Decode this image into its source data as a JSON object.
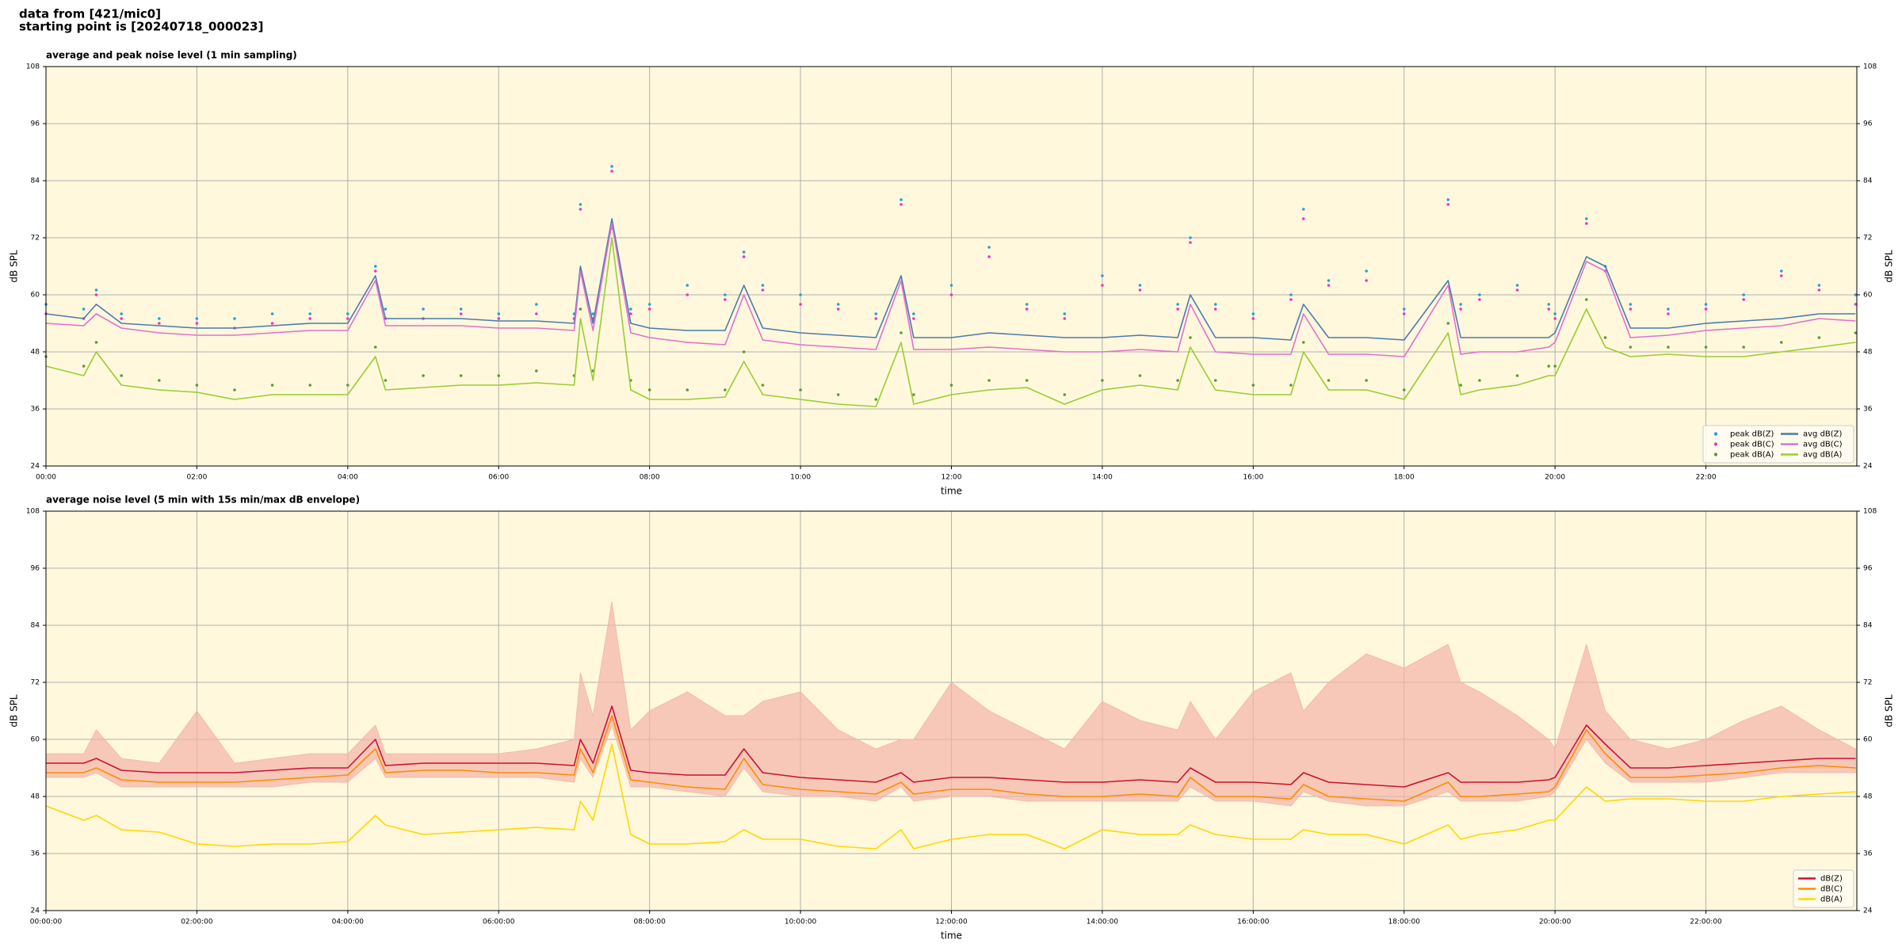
{
  "header": {
    "line1": "data from [421/mic0]",
    "line2": "starting point is [20240718_000023]"
  },
  "chart_data": [
    {
      "type": "line",
      "title": "average and peak noise level (1 min sampling)",
      "xlabel": "time",
      "ylabel": "dB SPL",
      "y2label": "dB SPL",
      "x": [
        "00:00",
        "00:30",
        "00:40",
        "01:00",
        "01:30",
        "02:00",
        "02:30",
        "03:00",
        "03:30",
        "04:00",
        "04:22",
        "04:30",
        "05:00",
        "05:30",
        "06:00",
        "06:30",
        "07:00",
        "07:05",
        "07:15",
        "07:30",
        "07:45",
        "08:00",
        "08:30",
        "09:00",
        "09:15",
        "09:30",
        "10:00",
        "10:30",
        "11:00",
        "11:20",
        "11:30",
        "12:00",
        "12:30",
        "13:00",
        "13:30",
        "14:00",
        "14:30",
        "15:00",
        "15:10",
        "15:30",
        "16:00",
        "16:30",
        "16:40",
        "17:00",
        "17:30",
        "18:00",
        "18:35",
        "18:45",
        "19:00",
        "19:30",
        "19:55",
        "20:00",
        "20:25",
        "20:40",
        "21:00",
        "21:30",
        "22:00",
        "22:30",
        "23:00",
        "23:30",
        "23:59"
      ],
      "xlim": [
        "00:00",
        "24:00"
      ],
      "xticks": [
        "00:00",
        "02:00",
        "04:00",
        "06:00",
        "08:00",
        "10:00",
        "12:00",
        "14:00",
        "16:00",
        "18:00",
        "20:00",
        "22:00"
      ],
      "ylim": [
        24,
        108
      ],
      "yticks": [
        24,
        36,
        48,
        60,
        72,
        84,
        96,
        108
      ],
      "grid": true,
      "background": "#fff8dc",
      "legend": "lower right",
      "legend_columns": 2,
      "series": [
        {
          "name": "peak dB(Z)",
          "marker": "dot",
          "color": "#2a9fd6",
          "values": [
            58,
            57,
            61,
            56,
            55,
            55,
            55,
            56,
            56,
            56,
            66,
            57,
            57,
            57,
            56,
            58,
            56,
            79,
            56,
            87,
            57,
            58,
            62,
            60,
            69,
            62,
            60,
            58,
            56,
            80,
            56,
            62,
            70,
            58,
            56,
            64,
            62,
            58,
            72,
            58,
            56,
            60,
            78,
            63,
            65,
            57,
            80,
            58,
            60,
            62,
            58,
            56,
            76,
            66,
            58,
            57,
            58,
            60,
            65,
            62,
            60
          ]
        },
        {
          "name": "peak dB(C)",
          "marker": "dot",
          "color": "#f033c8",
          "values": [
            56,
            55,
            60,
            55,
            54,
            54,
            53,
            54,
            55,
            55,
            65,
            55,
            55,
            56,
            55,
            56,
            55,
            78,
            55,
            86,
            56,
            57,
            60,
            59,
            68,
            61,
            58,
            57,
            55,
            79,
            55,
            60,
            68,
            57,
            55,
            62,
            61,
            57,
            71,
            57,
            55,
            59,
            76,
            62,
            63,
            56,
            79,
            57,
            59,
            61,
            57,
            55,
            75,
            65,
            57,
            56,
            57,
            59,
            64,
            61,
            58
          ]
        },
        {
          "name": "peak dB(A)",
          "marker": "dot",
          "color": "#5a9a3a",
          "values": [
            47,
            45,
            50,
            43,
            42,
            41,
            40,
            41,
            41,
            41,
            49,
            42,
            43,
            43,
            43,
            44,
            43,
            57,
            44,
            74,
            42,
            40,
            40,
            40,
            48,
            41,
            40,
            39,
            38,
            52,
            39,
            41,
            42,
            42,
            39,
            42,
            43,
            42,
            51,
            42,
            41,
            41,
            50,
            42,
            42,
            40,
            54,
            41,
            42,
            43,
            45,
            45,
            59,
            51,
            49,
            49,
            49,
            49,
            50,
            51,
            52
          ]
        },
        {
          "name": "avg dB(Z)",
          "marker": "line",
          "color": "#4a7ab0",
          "values": [
            56,
            55,
            58,
            54,
            53.5,
            53,
            53,
            53.5,
            54,
            54,
            64,
            55,
            55,
            55,
            54.5,
            54.5,
            54,
            66,
            54,
            76,
            54,
            53,
            52.5,
            52.5,
            62,
            53,
            52,
            51.5,
            51,
            64,
            51,
            51,
            52,
            51.5,
            51,
            51,
            51.5,
            51,
            60,
            51,
            51,
            50.5,
            58,
            51,
            51,
            50.5,
            63,
            51,
            51,
            51,
            51,
            52,
            68,
            66,
            53,
            53,
            54,
            54.5,
            55,
            56,
            56
          ]
        },
        {
          "name": "avg dB(C)",
          "marker": "line",
          "color": "#e070d0",
          "values": [
            54,
            53.5,
            56,
            53,
            52,
            51.5,
            51.5,
            52,
            52.5,
            52.5,
            63,
            53.5,
            53.5,
            53.5,
            53,
            53,
            52.5,
            65,
            52.5,
            75,
            52,
            51,
            50,
            49.5,
            60,
            50.5,
            49.5,
            49,
            48.5,
            63,
            48.5,
            48.5,
            49,
            48.5,
            48,
            48,
            48.5,
            48,
            58,
            48,
            47.5,
            47.5,
            56,
            47.5,
            47.5,
            47,
            62,
            47.5,
            48,
            48,
            49,
            50,
            67,
            65,
            51,
            51.5,
            52.5,
            53,
            53.5,
            55,
            54.5
          ]
        },
        {
          "name": "avg dB(A)",
          "marker": "line",
          "color": "#9acd32",
          "values": [
            45,
            43,
            48,
            41,
            40,
            39.5,
            38,
            39,
            39,
            39,
            47,
            40,
            40.5,
            41,
            41,
            41.5,
            41,
            55,
            42,
            72,
            40,
            38,
            38,
            38.5,
            46,
            39,
            38,
            37,
            36.5,
            50,
            37,
            39,
            40,
            40.5,
            37,
            40,
            41,
            40,
            49,
            40,
            39,
            39,
            48,
            40,
            40,
            38,
            52,
            39,
            40,
            41,
            43,
            43,
            57,
            49,
            47,
            47.5,
            47,
            47,
            48,
            49,
            50
          ]
        }
      ]
    },
    {
      "type": "line",
      "title": "average noise level (5 min with 15s min/max dB envelope)",
      "xlabel": "time",
      "ylabel": "dB SPL",
      "y2label": "dB SPL",
      "x": [
        "00:00:00",
        "00:30:00",
        "00:40:00",
        "01:00:00",
        "01:30:00",
        "02:00:00",
        "02:30:00",
        "03:00:00",
        "03:30:00",
        "04:00:00",
        "04:22:00",
        "04:30:00",
        "05:00:00",
        "05:30:00",
        "06:00:00",
        "06:30:00",
        "07:00:00",
        "07:05:00",
        "07:15:00",
        "07:30:00",
        "07:45:00",
        "08:00:00",
        "08:30:00",
        "09:00:00",
        "09:15:00",
        "09:30:00",
        "10:00:00",
        "10:30:00",
        "11:00:00",
        "11:20:00",
        "11:30:00",
        "12:00:00",
        "12:30:00",
        "13:00:00",
        "13:30:00",
        "14:00:00",
        "14:30:00",
        "15:00:00",
        "15:10:00",
        "15:30:00",
        "16:00:00",
        "16:30:00",
        "16:40:00",
        "17:00:00",
        "17:30:00",
        "18:00:00",
        "18:35:00",
        "18:45:00",
        "19:00:00",
        "19:30:00",
        "19:55:00",
        "20:00:00",
        "20:25:00",
        "20:40:00",
        "21:00:00",
        "21:30:00",
        "22:00:00",
        "22:30:00",
        "23:00:00",
        "23:30:00",
        "23:59:00"
      ],
      "xlim": [
        "00:00:00",
        "24:00:00"
      ],
      "xticks": [
        "00:00:00",
        "02:00:00",
        "04:00:00",
        "06:00:00",
        "08:00:00",
        "10:00:00",
        "12:00:00",
        "14:00:00",
        "16:00:00",
        "18:00:00",
        "20:00:00",
        "22:00:00"
      ],
      "ylim": [
        24,
        108
      ],
      "yticks": [
        24,
        36,
        48,
        60,
        72,
        84,
        96,
        108
      ],
      "grid": true,
      "background": "#fff8dc",
      "legend": "lower right",
      "legend_columns": 1,
      "envelope": {
        "color": "#f4b4a8",
        "max": [
          57,
          57,
          62,
          56,
          55,
          66,
          55,
          56,
          57,
          57,
          63,
          57,
          57,
          57,
          57,
          58,
          60,
          74,
          65,
          89,
          62,
          66,
          70,
          65,
          65,
          68,
          70,
          62,
          58,
          60,
          60,
          72,
          66,
          62,
          58,
          68,
          64,
          62,
          68,
          60,
          70,
          74,
          66,
          72,
          78,
          75,
          80,
          72,
          70,
          65,
          60,
          58,
          80,
          66,
          60,
          58,
          60,
          64,
          67,
          62,
          58
        ],
        "min": [
          52,
          52,
          53,
          50,
          50,
          50,
          50,
          50,
          51,
          51,
          56,
          52,
          52,
          52,
          52,
          52,
          51,
          56,
          52,
          63,
          50,
          50,
          49,
          48,
          54,
          49,
          48,
          48,
          47,
          50,
          47,
          48,
          48,
          47,
          47,
          47,
          47,
          47,
          50,
          47,
          47,
          46,
          49,
          47,
          46,
          46,
          49,
          47,
          47,
          47,
          48,
          49,
          60,
          55,
          51,
          51,
          51,
          52,
          53,
          53,
          53
        ]
      },
      "series": [
        {
          "name": "dB(Z)",
          "marker": "line",
          "color": "#cc1133",
          "values": [
            55,
            55,
            56,
            53.5,
            53,
            53,
            53,
            53.5,
            54,
            54,
            60,
            54.5,
            55,
            55,
            55,
            55,
            54.5,
            60,
            55,
            67,
            53.5,
            53,
            52.5,
            52.5,
            58,
            53,
            52,
            51.5,
            51,
            53,
            51,
            52,
            52,
            51.5,
            51,
            51,
            51.5,
            51,
            54,
            51,
            51,
            50.5,
            53,
            51,
            50.5,
            50,
            53,
            51,
            51,
            51,
            51.5,
            52,
            63,
            59,
            54,
            54,
            54.5,
            55,
            55.5,
            56,
            56
          ]
        },
        {
          "name": "dB(C)",
          "marker": "line",
          "color": "#ff8c00",
          "values": [
            53,
            53,
            54,
            51.5,
            51,
            51,
            51,
            51.5,
            52,
            52.5,
            58,
            53,
            53.5,
            53.5,
            53,
            53,
            52.5,
            58,
            53,
            65,
            51.5,
            51,
            50,
            49.5,
            56,
            50.5,
            49.5,
            49,
            48.5,
            51,
            48.5,
            49.5,
            49.5,
            48.5,
            48,
            48,
            48.5,
            48,
            52,
            48,
            48,
            47.5,
            50.5,
            48,
            47.5,
            47,
            51,
            48,
            48,
            48.5,
            49,
            50,
            62,
            57,
            52,
            52,
            52.5,
            53,
            54,
            54.5,
            54
          ]
        },
        {
          "name": "dB(A)",
          "marker": "line",
          "color": "#ffd700",
          "values": [
            46,
            43,
            44,
            41,
            40.5,
            38,
            37.5,
            38,
            38,
            38.5,
            44,
            42,
            40,
            40.5,
            41,
            41.5,
            41,
            47,
            43,
            59,
            40,
            38,
            38,
            38.5,
            41,
            39,
            39,
            37.5,
            37,
            41,
            37,
            39,
            40,
            40,
            37,
            41,
            40,
            40,
            42,
            40,
            39,
            39,
            41,
            40,
            40,
            38,
            42,
            39,
            40,
            41,
            43,
            43,
            50,
            47,
            47.5,
            47.5,
            47,
            47,
            48,
            48.5,
            49
          ]
        }
      ]
    }
  ]
}
